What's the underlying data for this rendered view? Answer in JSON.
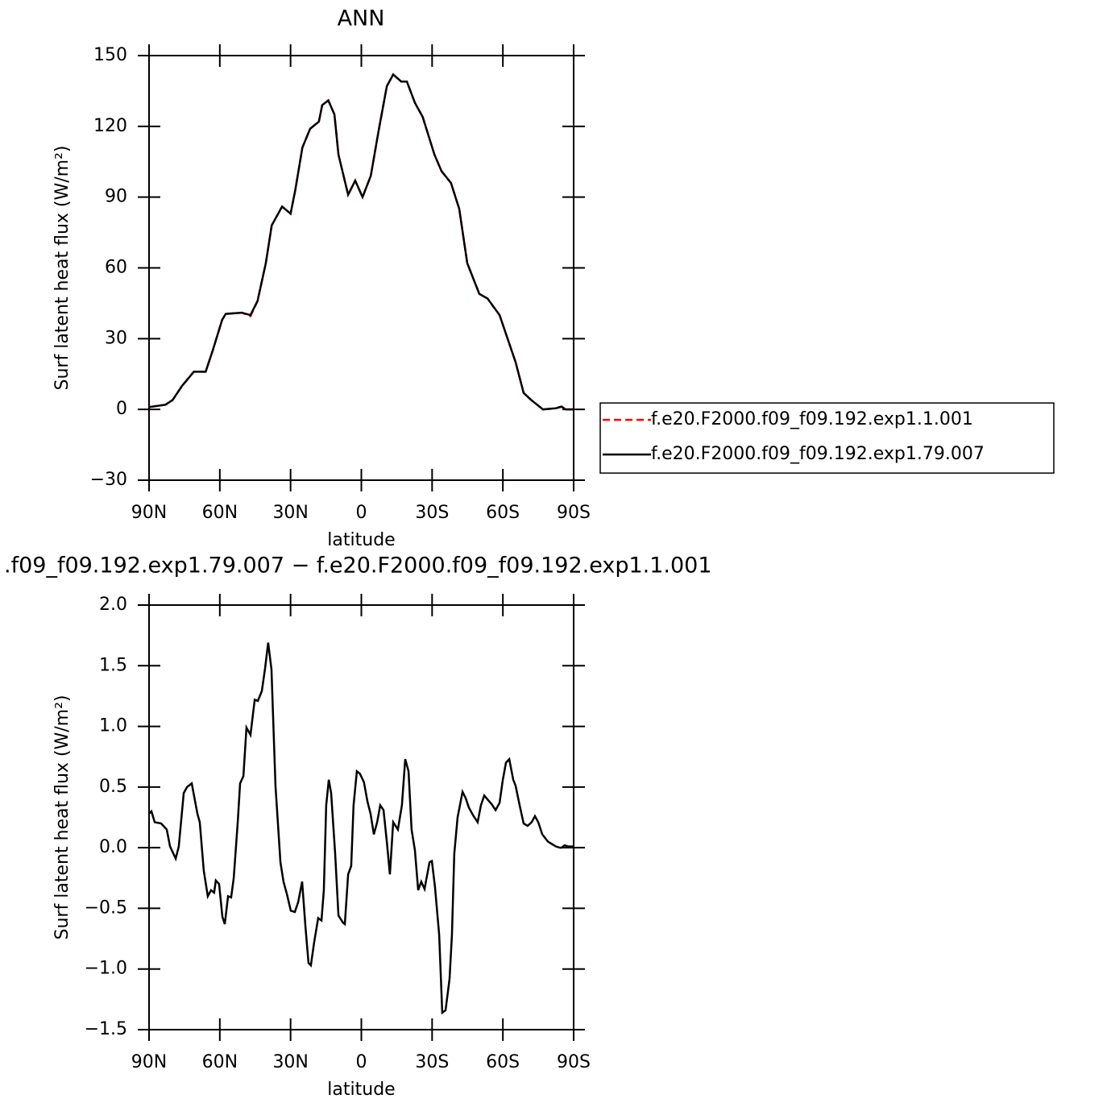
{
  "chart_data": [
    {
      "type": "line",
      "title": "ANN",
      "xlabel": "latitude",
      "ylabel": "Surf latent heat flux (W/m²)",
      "x": [
        90,
        83,
        80,
        76,
        71,
        66,
        63,
        59,
        57.5,
        50.7,
        47,
        44,
        40.5,
        38,
        33.6,
        30,
        28,
        25,
        21.7,
        18,
        16.6,
        14,
        11.4,
        9.7,
        5.6,
        2.6,
        -0.5,
        -4,
        -7.3,
        -10.8,
        -13.5,
        -16.9,
        -19.3,
        -22.7,
        -26,
        -31,
        -34,
        -38,
        -41.5,
        -44.9,
        -50,
        -53.5,
        -58.6,
        -62,
        -65.4,
        -68.8,
        -72,
        -77,
        -82.5,
        -84.9,
        -86.6,
        -90
      ],
      "series": [
        {
          "name": "f.e20.F2000.f09_f09.192.exp1.1.001",
          "color": "#ff0000",
          "style": "dashed",
          "values": [
            1,
            2,
            4,
            10,
            16,
            16,
            25,
            38,
            40.5,
            41,
            39.5,
            46,
            62,
            78,
            86,
            83,
            93,
            111,
            119,
            122,
            129,
            131,
            125,
            108,
            91,
            97,
            90,
            99,
            118,
            137,
            142,
            139,
            139,
            130,
            124,
            108,
            101,
            96,
            85,
            62,
            49,
            47,
            40,
            30,
            20,
            7,
            4,
            0,
            0.5,
            1.2,
            0,
            0
          ]
        },
        {
          "name": "f.e20.F2000.f09_f09.192.exp1.79.007",
          "color": "#000000",
          "style": "solid",
          "values": [
            1,
            2,
            4,
            10,
            16,
            16,
            25,
            38,
            40.5,
            41,
            40,
            46,
            62,
            78,
            86,
            83,
            93,
            111,
            119,
            122,
            129,
            131,
            125,
            108,
            91,
            97,
            90,
            99,
            118,
            137,
            142,
            139,
            139,
            130,
            124,
            108,
            101,
            96,
            85,
            62,
            49,
            47,
            40,
            30,
            20,
            7,
            4,
            0,
            0.5,
            1.2,
            0,
            0
          ]
        }
      ],
      "xlim": [
        90,
        -90
      ],
      "xticks": [
        {
          "value": 90,
          "label": "90N"
        },
        {
          "value": 60,
          "label": "60N"
        },
        {
          "value": 30,
          "label": "30N"
        },
        0,
        {
          "value": -30,
          "label": "30S"
        },
        {
          "value": -60,
          "label": "60S"
        },
        {
          "value": -90,
          "label": "90S"
        }
      ],
      "ylim": [
        -30,
        150
      ],
      "yticks": [
        {
          "value": -30,
          "label": "−30"
        },
        0,
        30,
        60,
        90,
        120,
        150
      ],
      "legend": "right"
    },
    {
      "type": "line",
      "title": ".f09_f09.192.exp1.79.007 − f.e20.F2000.f09_f09.192.exp1.1.001",
      "xlabel": "latitude",
      "ylabel": "Surf latent heat flux (W/m²)",
      "x": [
        90,
        89,
        87.6,
        84.9,
        82.5,
        81.1,
        78.7,
        77.4,
        75.3,
        73.9,
        71.9,
        69.5,
        68.5,
        66.8,
        65.1,
        63.7,
        62.4,
        61.7,
        60.3,
        58.9,
        57.9,
        56.5,
        55.2,
        54.1,
        52.4,
        51.4,
        50,
        48.7,
        47,
        45.2,
        43.9,
        42.2,
        40.8,
        39.5,
        38.1,
        36.4,
        34.3,
        33,
        31.6,
        29.9,
        28.2,
        26.8,
        25.1,
        23.7,
        22.4,
        21.4,
        20,
        18.3,
        16.9,
        15.9,
        14.9,
        13.8,
        12.8,
        11.1,
        9.7,
        7.7,
        7,
        5.6,
        4.3,
        3.3,
        1.9,
        0.6,
        -1.1,
        -2.6,
        -3.9,
        -5.3,
        -6.7,
        -8,
        -9.4,
        -10.8,
        -12.1,
        -13.5,
        -15.5,
        -17.2,
        -18.6,
        -20,
        -21.3,
        -22.7,
        -24.1,
        -25.4,
        -26.8,
        -28.9,
        -29.9,
        -31.2,
        -33,
        -34.3,
        -35.7,
        -37.4,
        -38.4,
        -39.4,
        -40.8,
        -42.9,
        -44.2,
        -45.6,
        -47.6,
        -49.3,
        -50.7,
        -52.1,
        -53.4,
        -55.2,
        -56.9,
        -58.6,
        -59.9,
        -61.3,
        -62.7,
        -64.4,
        -65.4,
        -67.1,
        -68.8,
        -70.5,
        -72.2,
        -73.6,
        -75,
        -76.7,
        -79.1,
        -80.8,
        -82.5,
        -84.2,
        -84.9,
        -86.2,
        -87.6,
        -90
      ],
      "series": [
        {
          "color": "#000000",
          "style": "solid",
          "values": [
            0.28,
            0.3,
            0.21,
            0.2,
            0.15,
            0.01,
            -0.09,
            0.01,
            0.45,
            0.5,
            0.53,
            0.28,
            0.21,
            -0.19,
            -0.4,
            -0.35,
            -0.37,
            -0.27,
            -0.3,
            -0.57,
            -0.63,
            -0.4,
            -0.41,
            -0.25,
            0.21,
            0.53,
            0.59,
            0.99,
            0.93,
            1.22,
            1.21,
            1.29,
            1.48,
            1.69,
            1.47,
            0.51,
            -0.12,
            -0.28,
            -0.38,
            -0.52,
            -0.53,
            -0.45,
            -0.28,
            -0.65,
            -0.95,
            -0.97,
            -0.78,
            -0.58,
            -0.6,
            -0.35,
            0.35,
            0.56,
            0.45,
            -0.05,
            -0.56,
            -0.62,
            -0.63,
            -0.22,
            -0.15,
            0.35,
            0.63,
            0.61,
            0.54,
            0.38,
            0.28,
            0.11,
            0.21,
            0.35,
            0.31,
            0.05,
            -0.22,
            0.21,
            0.15,
            0.35,
            0.73,
            0.63,
            0.15,
            -0.02,
            -0.35,
            -0.28,
            -0.34,
            -0.12,
            -0.11,
            -0.32,
            -0.72,
            -1.36,
            -1.34,
            -1.08,
            -0.72,
            -0.05,
            0.25,
            0.46,
            0.41,
            0.33,
            0.26,
            0.21,
            0.35,
            0.43,
            0.4,
            0.36,
            0.31,
            0.37,
            0.55,
            0.7,
            0.73,
            0.56,
            0.51,
            0.35,
            0.2,
            0.18,
            0.21,
            0.26,
            0.21,
            0.11,
            0.05,
            0.03,
            0.01,
            0,
            0,
            0.02,
            0.01,
            0.01
          ]
        }
      ],
      "xlim": [
        90,
        -90
      ],
      "xticks": [
        {
          "value": 90,
          "label": "90N"
        },
        {
          "value": 60,
          "label": "60N"
        },
        {
          "value": 30,
          "label": "30N"
        },
        0,
        {
          "value": -30,
          "label": "30S"
        },
        {
          "value": -60,
          "label": "60S"
        },
        {
          "value": -90,
          "label": "90S"
        }
      ],
      "ylim": [
        -1.5,
        2
      ],
      "yticks": [
        {
          "value": -1.5,
          "label": "−1.5"
        },
        {
          "value": -1,
          "label": "−1.0"
        },
        {
          "value": -0.5,
          "label": "−0.5"
        },
        {
          "value": 0,
          "label": "0.0"
        },
        0.5,
        {
          "value": 1,
          "label": "1.0"
        },
        1.5,
        {
          "value": 2,
          "label": "2.0"
        }
      ]
    }
  ]
}
